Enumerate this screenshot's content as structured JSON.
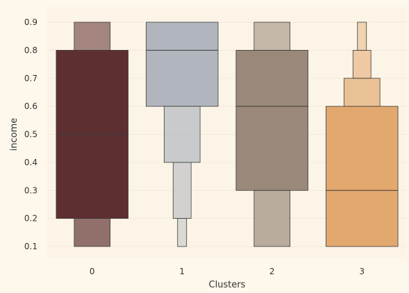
{
  "chart_data": {
    "type": "boxen",
    "xlabel": "Clusters",
    "ylabel": "income",
    "ylim": [
      0.08,
      0.92
    ],
    "yticks": [
      0.1,
      0.2,
      0.3,
      0.4,
      0.5,
      0.6,
      0.7,
      0.8,
      0.9
    ],
    "ytick_labels": [
      "0.1",
      "0.2",
      "0.3",
      "0.4",
      "0.5",
      "0.6",
      "0.7",
      "0.8",
      "0.9"
    ],
    "grid": true,
    "categories": [
      "0",
      "1",
      "2",
      "3"
    ],
    "groups": [
      {
        "category": "0",
        "color": "#5e2f31",
        "median": 0.5,
        "boxes": [
          {
            "low": 0.2,
            "high": 0.8,
            "width_fraction": 1.0
          },
          {
            "low": 0.1,
            "high": 0.2,
            "width_fraction": 0.5
          },
          {
            "low": 0.8,
            "high": 0.9,
            "width_fraction": 0.5
          }
        ]
      },
      {
        "category": "1",
        "color": "#b1b6be",
        "median": 0.8,
        "boxes": [
          {
            "low": 0.6,
            "high": 0.9,
            "width_fraction": 1.0
          },
          {
            "low": 0.4,
            "high": 0.6,
            "width_fraction": 0.5
          },
          {
            "low": 0.2,
            "high": 0.4,
            "width_fraction": 0.25
          },
          {
            "low": 0.1,
            "high": 0.2,
            "width_fraction": 0.125
          }
        ]
      },
      {
        "category": "2",
        "color": "#9a887a",
        "median": 0.6,
        "boxes": [
          {
            "low": 0.3,
            "high": 0.8,
            "width_fraction": 1.0
          },
          {
            "low": 0.1,
            "high": 0.3,
            "width_fraction": 0.5
          },
          {
            "low": 0.8,
            "high": 0.9,
            "width_fraction": 0.5
          }
        ]
      },
      {
        "category": "3",
        "color": "#e2a86e",
        "median": 0.3,
        "boxes": [
          {
            "low": 0.1,
            "high": 0.6,
            "width_fraction": 1.0
          },
          {
            "low": 0.6,
            "high": 0.7,
            "width_fraction": 0.5
          },
          {
            "low": 0.7,
            "high": 0.8,
            "width_fraction": 0.25
          },
          {
            "low": 0.8,
            "high": 0.9,
            "width_fraction": 0.125
          }
        ]
      }
    ]
  },
  "colors": {
    "page_background": "#fdf7ec",
    "plot_background": "#fcf4e6",
    "grid": "#f1e9d8",
    "box_edge": "#3a3a3a"
  }
}
